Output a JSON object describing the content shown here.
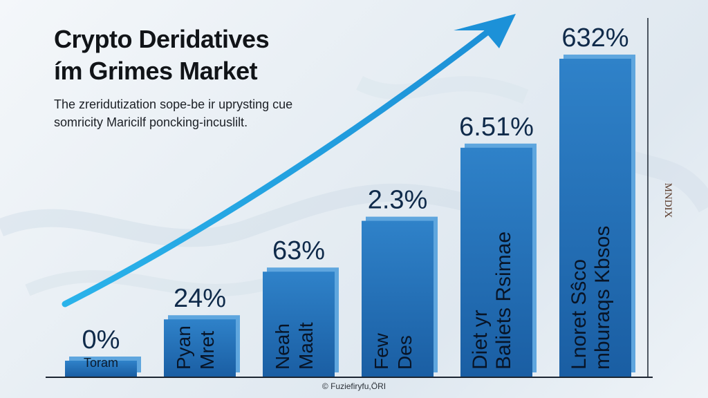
{
  "title": [
    "Crypto Deridatives",
    "ím Grimes Market"
  ],
  "subtitle": [
    "The zreridutization sope-be ir uprysting cue",
    "somricity Maricilf poncking-incuslilt."
  ],
  "side_label": "MNDIX",
  "watermark": "© Fuziefiryfu,ÖRI",
  "colors": {
    "bar_top": "#2a78bf",
    "bar_bottom": "#1a5fa6",
    "arrow": "#1d9fe0",
    "text": "#0f2a4a"
  },
  "chart_data": {
    "type": "bar",
    "categories": [
      "Toram",
      "Pyan Mret",
      "Neah Maalt",
      "Few Des",
      "Diet yr Baliets Rsimae",
      "Lnoret Sŝco mburaqs Kbsos"
    ],
    "values": [
      0,
      24,
      63,
      2.3,
      6.51,
      632
    ],
    "value_labels": [
      "0%",
      "24%",
      "63%",
      "2.3%",
      "6.51%",
      "632%"
    ],
    "visual_height_pct": [
      5,
      18,
      33,
      49,
      72,
      100
    ],
    "title": "",
    "xlabel": "",
    "ylabel": "MNDIX",
    "trend_arrow": true,
    "grid": false
  }
}
